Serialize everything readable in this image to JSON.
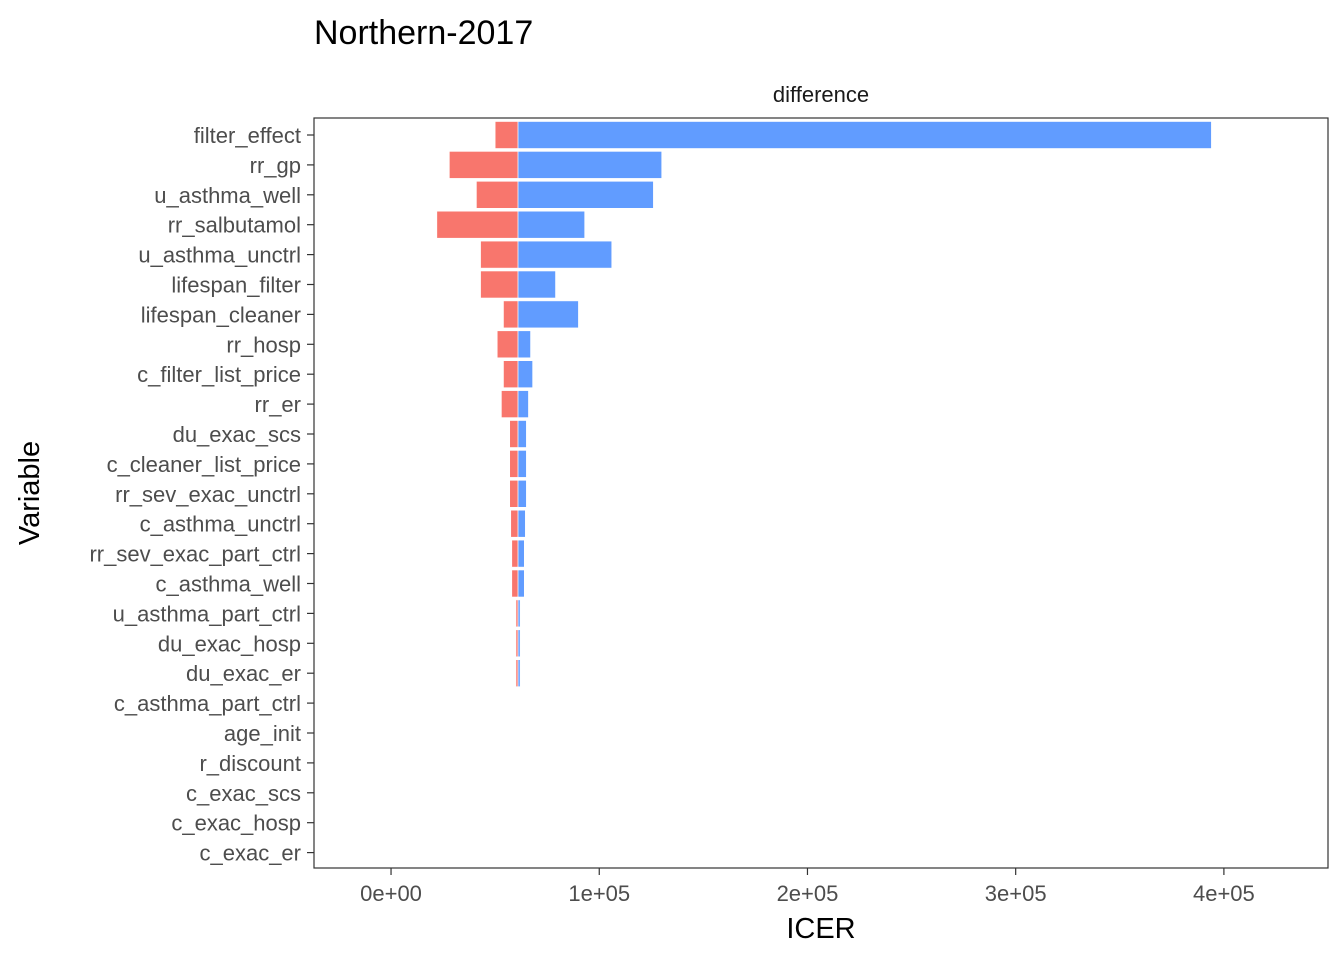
{
  "chart_data": {
    "type": "bar",
    "subtype": "tornado",
    "title": "Northern-2017",
    "facet_label": "difference",
    "xlabel": "ICER",
    "ylabel": "Variable",
    "xlim": [
      -37000,
      450000
    ],
    "baseline": 61000,
    "x_ticks": [
      0,
      100000,
      200000,
      300000,
      400000
    ],
    "x_tick_labels": [
      "0e+00",
      "1e+05",
      "2e+05",
      "3e+05",
      "4e+05"
    ],
    "grid": false,
    "legend": "none",
    "colors": {
      "low": "#F8766D",
      "high": "#619CFF"
    },
    "variables": [
      {
        "name": "filter_effect",
        "low": 50000,
        "high": 394000
      },
      {
        "name": "rr_gp",
        "low": 28000,
        "high": 130000
      },
      {
        "name": "u_asthma_well",
        "low": 41000,
        "high": 126000
      },
      {
        "name": "rr_salbutamol",
        "low": 22000,
        "high": 93000
      },
      {
        "name": "u_asthma_unctrl",
        "low": 43000,
        "high": 106000
      },
      {
        "name": "lifespan_filter",
        "low": 43000,
        "high": 79000
      },
      {
        "name": "lifespan_cleaner",
        "low": 54000,
        "high": 90000
      },
      {
        "name": "rr_hosp",
        "low": 51000,
        "high": 67000
      },
      {
        "name": "c_filter_list_price",
        "low": 54000,
        "high": 68000
      },
      {
        "name": "rr_er",
        "low": 53000,
        "high": 66000
      },
      {
        "name": "du_exac_scs",
        "low": 57000,
        "high": 65000
      },
      {
        "name": "c_cleaner_list_price",
        "low": 57000,
        "high": 65000
      },
      {
        "name": "rr_sev_exac_unctrl",
        "low": 57000,
        "high": 65000
      },
      {
        "name": "c_asthma_unctrl",
        "low": 57500,
        "high": 64500
      },
      {
        "name": "rr_sev_exac_part_ctrl",
        "low": 58000,
        "high": 64000
      },
      {
        "name": "c_asthma_well",
        "low": 58000,
        "high": 64000
      },
      {
        "name": "u_asthma_part_ctrl",
        "low": 60000,
        "high": 62000
      },
      {
        "name": "du_exac_hosp",
        "low": 60000,
        "high": 62000
      },
      {
        "name": "du_exac_er",
        "low": 60000,
        "high": 62000
      },
      {
        "name": "c_asthma_part_ctrl",
        "low": 61000,
        "high": 61000
      },
      {
        "name": "age_init",
        "low": 61000,
        "high": 61000
      },
      {
        "name": "r_discount",
        "low": 61000,
        "high": 61000
      },
      {
        "name": "c_exac_scs",
        "low": 61000,
        "high": 61000
      },
      {
        "name": "c_exac_hosp",
        "low": 61000,
        "high": 61000
      },
      {
        "name": "c_exac_er",
        "low": 61000,
        "high": 61000
      }
    ]
  }
}
